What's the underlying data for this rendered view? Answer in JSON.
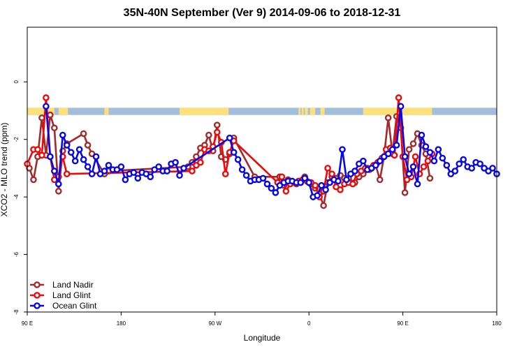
{
  "chart_data": {
    "type": "line",
    "title": "35N-40N September (Ver 9)   2014-09-06 to 2018-12-31",
    "xlabel": "Longitude",
    "ylabel": "XCO2 - MLO trend (ppm)",
    "x_ticks": [
      {
        "value": 90,
        "label": "90 E"
      },
      {
        "value": 180,
        "label": "180"
      },
      {
        "value": 270,
        "label": "90 W"
      },
      {
        "value": 360,
        "label": "0"
      },
      {
        "value": 450,
        "label": "90 E"
      },
      {
        "value": 540,
        "label": "180"
      }
    ],
    "y_ticks": [
      0,
      -2,
      -4,
      -6,
      -8
    ],
    "xlim": [
      90,
      540
    ],
    "ylim": [
      -8,
      1.9
    ],
    "grid": false,
    "legend_position": "bottom-left",
    "land_band": {
      "y_range": [
        -1.15,
        -0.9
      ],
      "ocean_color": "#a4bddd",
      "land_color": "#fde07a",
      "land_segments": [
        [
          90,
          116
        ],
        [
          120,
          129
        ],
        [
          164,
          168
        ],
        [
          236,
          283
        ],
        [
          350,
          352
        ],
        [
          353,
          355
        ],
        [
          356,
          359
        ],
        [
          361,
          366
        ],
        [
          371,
          375
        ],
        [
          412,
          478
        ],
        [
          541,
          540
        ]
      ]
    },
    "series": [
      {
        "name": "Land Nadir",
        "color": "#a5292a",
        "x": [
          92,
          96,
          100,
          104,
          108,
          112,
          116,
          120,
          124,
          128,
          144,
          148,
          152,
          164,
          168,
          244,
          248,
          252,
          256,
          260,
          264,
          268,
          272,
          276,
          280,
          284,
          288,
          308,
          332,
          336,
          340,
          344,
          348,
          352,
          356,
          362,
          366,
          370,
          374,
          378,
          382,
          386,
          390,
          394,
          398,
          404,
          408,
          412,
          416,
          420,
          424,
          428,
          432,
          436,
          440,
          444,
          448,
          452,
          456,
          460,
          464,
          468,
          472,
          476
        ],
        "y": [
          -3.0,
          -3.4,
          -2.6,
          -1.25,
          -2.55,
          -1.15,
          -1.6,
          -3.8,
          -2.4,
          -2.15,
          -1.8,
          -2.2,
          -2.5,
          -3.2,
          -3.1,
          -2.95,
          -2.8,
          -2.6,
          -2.3,
          -2.2,
          -1.85,
          -2.4,
          -1.5,
          -2.6,
          -2.7,
          -2.5,
          -1.95,
          -3.3,
          -3.3,
          -3.6,
          -3.4,
          -3.5,
          -3.55,
          -3.5,
          -3.3,
          -3.55,
          -3.7,
          -3.9,
          -4.3,
          -3.5,
          -3.3,
          -3.35,
          -3.25,
          -3.35,
          -3.35,
          -3.5,
          -3.3,
          -3.2,
          -3.0,
          -3.0,
          -2.9,
          -3.4,
          -2.6,
          -1.25,
          -2.5,
          -1.2,
          -1.6,
          -3.85,
          -2.35,
          -2.15,
          -1.8,
          -2.2,
          -2.5,
          -3.35
        ]
      },
      {
        "name": "Land Glint",
        "color": "#f20707",
        "x": [
          90,
          96,
          100,
          104,
          108,
          112,
          116,
          120,
          124,
          128,
          248,
          252,
          256,
          260,
          264,
          268,
          272,
          276,
          280,
          284,
          288,
          330,
          334,
          338,
          342,
          346,
          350,
          354,
          358,
          362,
          366,
          370,
          374,
          378,
          382,
          386,
          390,
          394,
          398,
          402,
          406,
          410,
          414,
          418,
          422,
          426,
          430,
          434,
          438,
          442,
          446,
          450,
          454,
          458,
          462,
          466,
          470,
          474,
          478
        ],
        "y": [
          -2.85,
          -2.35,
          -2.35,
          -2.55,
          -0.55,
          -2.6,
          -3.4,
          -3.3,
          -2.6,
          -3.2,
          -3.1,
          -2.9,
          -2.8,
          -2.35,
          -2.4,
          -2.25,
          -1.75,
          -2.1,
          -3.2,
          -2.45,
          -2.05,
          -3.5,
          -3.3,
          -3.8,
          -3.55,
          -3.5,
          -3.45,
          -3.4,
          -3.45,
          -3.5,
          -3.6,
          -4.0,
          -3.8,
          -3.0,
          -3.2,
          -3.65,
          -3.75,
          -3.55,
          -3.5,
          -3.55,
          -3.2,
          -3.1,
          -3.0,
          -3.05,
          -2.9,
          -2.8,
          -2.65,
          -2.35,
          -2.3,
          -2.55,
          -0.55,
          -2.6,
          -3.4,
          -3.3,
          -2.6,
          -3.2,
          -2.95,
          -2.75,
          -2.5
        ]
      },
      {
        "name": "Ocean Glint",
        "color": "#0606ea",
        "x": [
          108,
          112,
          116,
          120,
          124,
          128,
          132,
          136,
          140,
          144,
          148,
          152,
          156,
          160,
          164,
          168,
          172,
          176,
          180,
          184,
          188,
          192,
          196,
          200,
          204,
          208,
          212,
          216,
          220,
          224,
          228,
          232,
          236,
          240,
          284,
          288,
          292,
          296,
          300,
          304,
          308,
          312,
          316,
          320,
          324,
          328,
          332,
          336,
          340,
          344,
          348,
          352,
          356,
          360,
          364,
          368,
          372,
          376,
          380,
          384,
          388,
          392,
          396,
          400,
          404,
          408,
          412,
          416,
          420,
          424,
          428,
          432,
          436,
          440,
          444,
          448,
          452,
          456,
          460,
          464,
          468,
          472,
          476,
          480,
          484,
          488,
          492,
          496,
          500,
          504,
          508,
          512,
          516,
          520,
          524,
          528,
          532,
          536,
          540
        ],
        "y": [
          -0.85,
          -2.6,
          -3.1,
          -3.55,
          -1.85,
          -2.2,
          -2.45,
          -2.75,
          -2.35,
          -2.7,
          -2.95,
          -3.2,
          -2.6,
          -3.2,
          -3.1,
          -2.9,
          -3.05,
          -3.05,
          -2.95,
          -3.4,
          -3.2,
          -3.15,
          -3.35,
          -3.15,
          -3.2,
          -3.3,
          -3.05,
          -2.95,
          -3.1,
          -3.1,
          -2.85,
          -2.8,
          -3.25,
          -3.0,
          -1.95,
          -2.45,
          -2.7,
          -3.05,
          -3.25,
          -3.45,
          -3.4,
          -3.4,
          -3.35,
          -3.55,
          -3.7,
          -3.85,
          -3.6,
          -3.5,
          -3.45,
          -3.45,
          -3.5,
          -3.5,
          -3.35,
          -3.5,
          -4.0,
          -3.95,
          -3.6,
          -3.75,
          -3.5,
          -3.4,
          -3.45,
          -2.35,
          -3.4,
          -3.2,
          -3.1,
          -2.85,
          -2.75,
          -3.05,
          -3.0,
          -2.9,
          -2.75,
          -2.6,
          -2.5,
          -2.35,
          -2.2,
          -0.85,
          -2.6,
          -3.2,
          -2.95,
          -3.55,
          -1.85,
          -2.25,
          -2.45,
          -2.75,
          -2.35,
          -2.65,
          -2.9,
          -3.2,
          -3.1,
          -2.85,
          -2.7,
          -2.95,
          -3.0,
          -2.8,
          -2.85,
          -3.0,
          -3.1,
          -3.0,
          -3.2
        ]
      }
    ]
  }
}
